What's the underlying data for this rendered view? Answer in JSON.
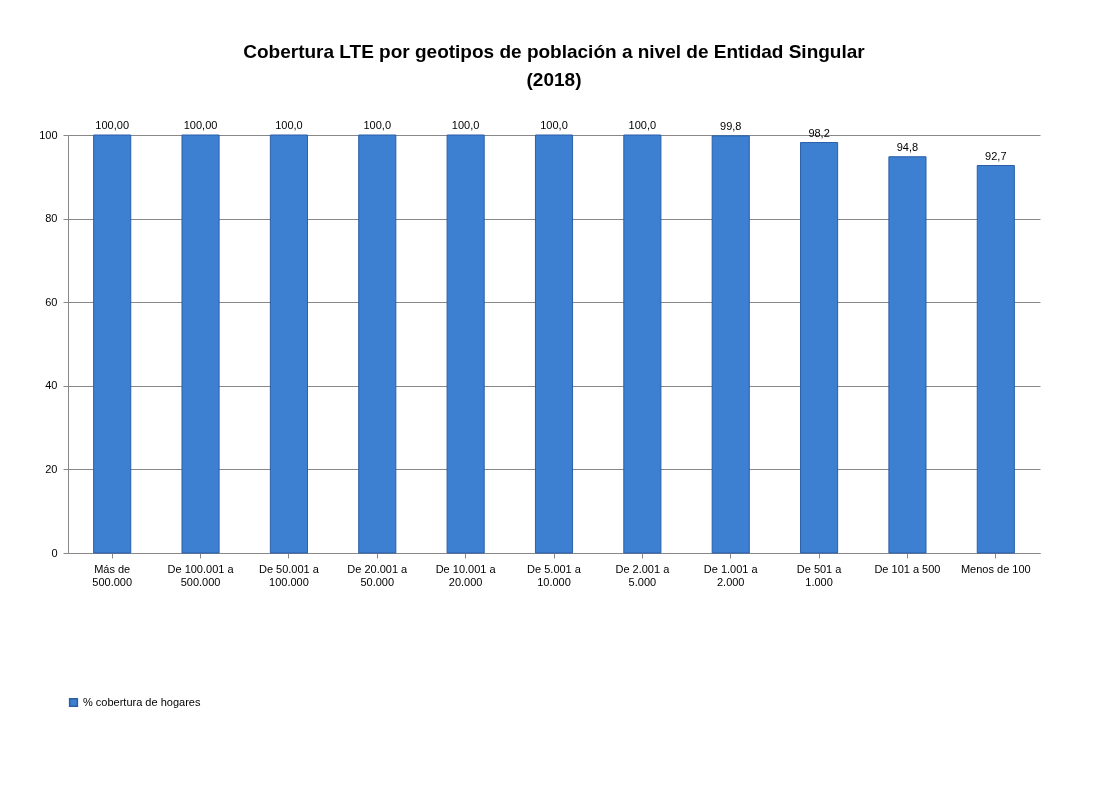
{
  "chart_data": {
    "type": "bar",
    "title": "Cobertura LTE por geotipos de población a nivel de Entidad Singular (2018)",
    "categories": [
      "Más de 500.000",
      "De 100.001 a 500.000",
      "De 50.001 a 100.000",
      "De 20.001 a 50.000",
      "De 10.001 a 20.000",
      "De 5.001 a 10.000",
      "De 2.001 a 5.000",
      "De 1.001 a 2.000",
      "De 501 a 1.000",
      "De 101 a 500",
      "Menos de 100"
    ],
    "series": [
      {
        "name": "% cobertura de hogares",
        "color": "#3d7fd1",
        "values": [
          100,
          100,
          100,
          100,
          100,
          100,
          100,
          99.8,
          98.2,
          94.8,
          92.7
        ],
        "value_labels": [
          "100,00",
          "100,00",
          "100,0",
          "100,0",
          "100,0",
          "100,0",
          "100,0",
          "99,8",
          "98,2",
          "94,8",
          "92,7"
        ]
      }
    ],
    "ylim": [
      0,
      100
    ],
    "yticks": [
      0,
      20,
      40,
      60,
      80,
      100
    ],
    "grid": "y",
    "legend": "bottom"
  }
}
